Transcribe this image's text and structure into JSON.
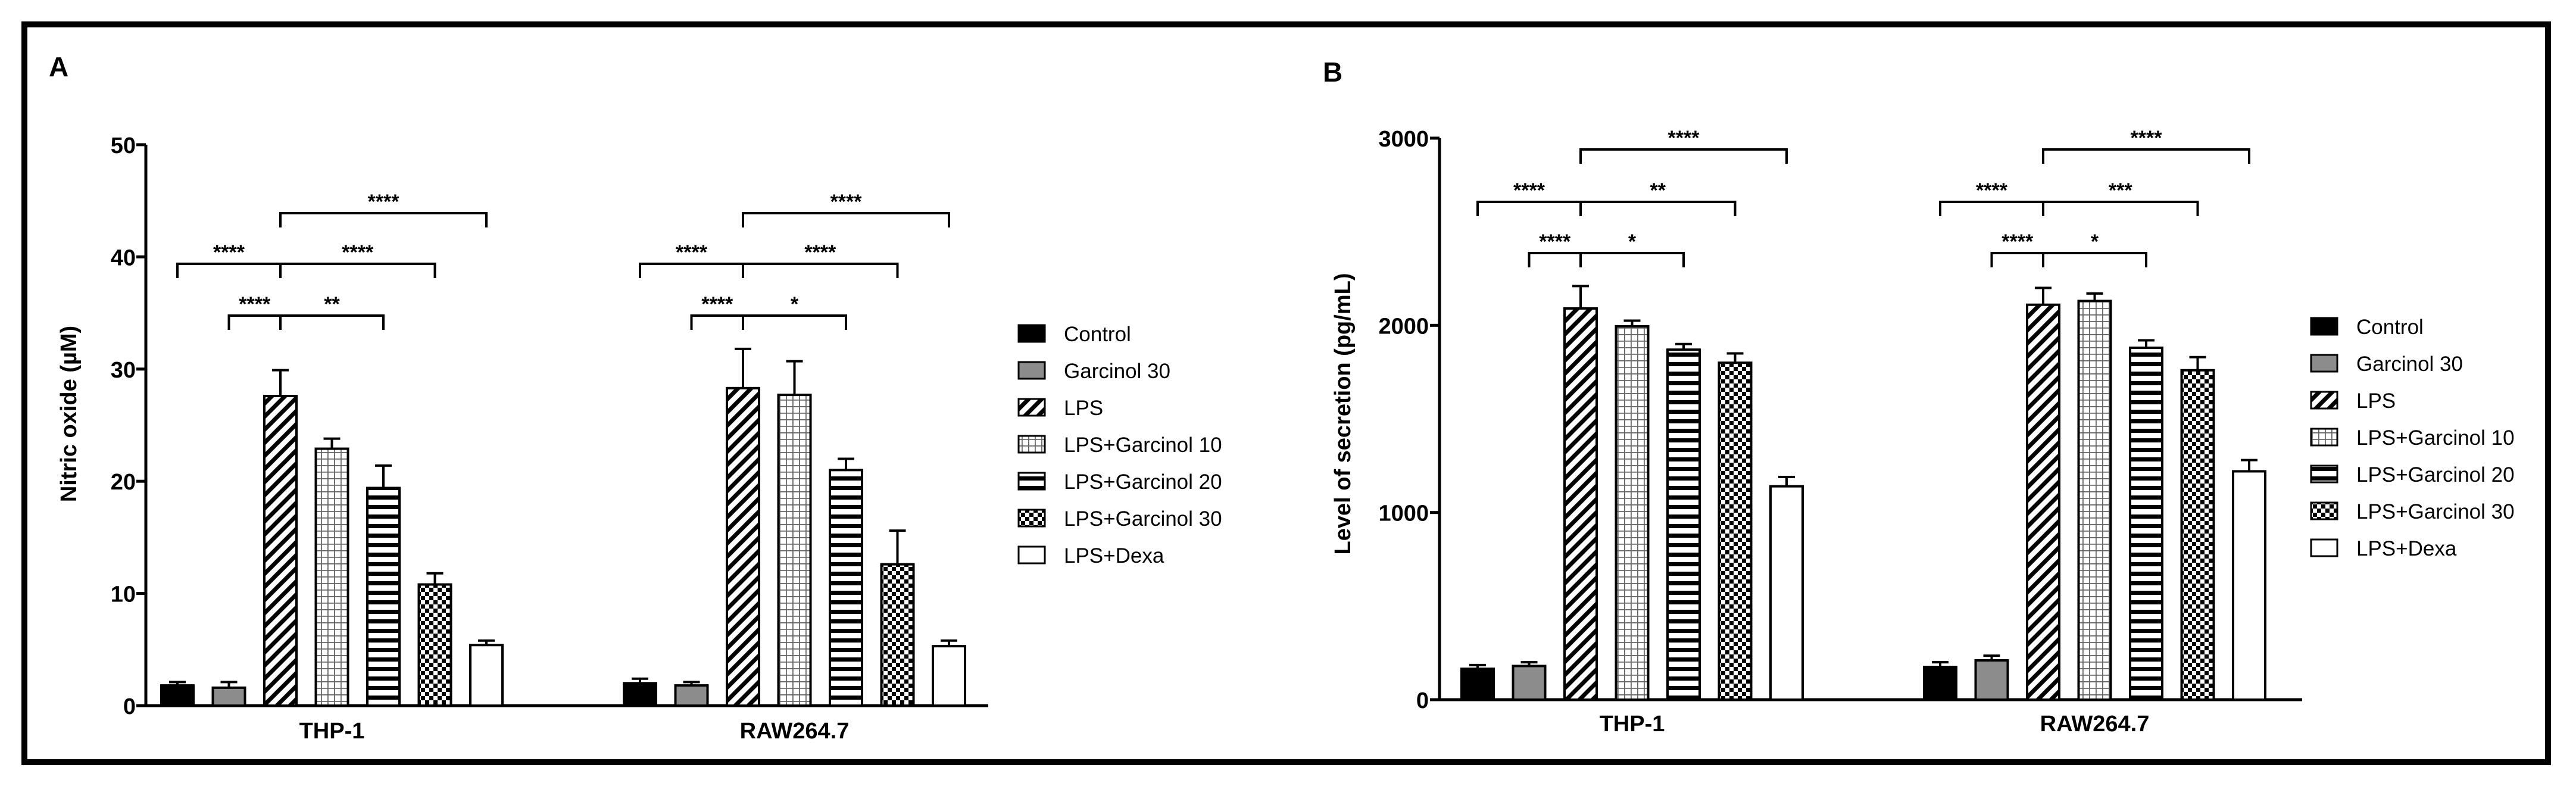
{
  "colors": {
    "control": "#000000",
    "garcinol": "#8c8c8c",
    "text": "#000000"
  },
  "chart_data": [
    {
      "panel_label": "A",
      "type": "bar",
      "ylabel": "Nitric oxide (µM)",
      "ylim": [
        0,
        50
      ],
      "yticks": [
        "0",
        "10",
        "20",
        "30",
        "40",
        "50"
      ],
      "categories": [
        "THP-1",
        "RAW264.7"
      ],
      "legend_position": "right",
      "series": [
        {
          "name": "Control",
          "pattern": "solid-black",
          "values": [
            1.8,
            2.0
          ],
          "errors": [
            0.3,
            0.4
          ]
        },
        {
          "name": "Garcinol 30",
          "pattern": "solid-gray",
          "values": [
            1.6,
            1.8
          ],
          "errors": [
            0.5,
            0.3
          ]
        },
        {
          "name": "LPS",
          "pattern": "diagonal",
          "values": [
            27.6,
            28.3
          ],
          "errors": [
            2.3,
            3.5
          ]
        },
        {
          "name": "LPS+Garcinol 10",
          "pattern": "grid",
          "values": [
            22.9,
            27.7
          ],
          "errors": [
            0.9,
            3.0
          ]
        },
        {
          "name": "LPS+Garcinol 20",
          "pattern": "horizontal",
          "values": [
            19.4,
            21.0
          ],
          "errors": [
            2.0,
            1.0
          ]
        },
        {
          "name": "LPS+Garcinol 30",
          "pattern": "checker",
          "values": [
            10.8,
            12.6
          ],
          "errors": [
            1.0,
            3.0
          ]
        },
        {
          "name": "LPS+Dexa",
          "pattern": "white",
          "values": [
            5.4,
            5.3
          ],
          "errors": [
            0.4,
            0.5
          ]
        }
      ],
      "significance": [
        {
          "from": "Control",
          "to": "LPS",
          "label": "****"
        },
        {
          "from": "Garcinol 30",
          "to": "LPS",
          "label": "****"
        },
        {
          "from": "LPS",
          "to": "LPS+Garcinol 20",
          "label": "**",
          "group": 0
        },
        {
          "from": "LPS",
          "to": "LPS+Garcinol 20",
          "label": "*",
          "group": 1
        },
        {
          "from": "LPS",
          "to": "LPS+Garcinol 30",
          "label": "****"
        },
        {
          "from": "LPS",
          "to": "LPS+Dexa",
          "label": "****"
        }
      ]
    },
    {
      "panel_label": "B",
      "type": "bar",
      "ylabel": "Level of secretion (pg/mL)",
      "ylim": [
        0,
        3000
      ],
      "yticks": [
        "0",
        "1000",
        "2000",
        "3000"
      ],
      "categories": [
        "THP-1",
        "RAW264.7"
      ],
      "legend_position": "right",
      "series": [
        {
          "name": "Control",
          "pattern": "solid-black",
          "values": [
            165,
            175
          ],
          "errors": [
            20,
            25
          ]
        },
        {
          "name": "Garcinol 30",
          "pattern": "solid-gray",
          "values": [
            180,
            210
          ],
          "errors": [
            20,
            25
          ]
        },
        {
          "name": "LPS",
          "pattern": "diagonal",
          "values": [
            2090,
            2110
          ],
          "errors": [
            120,
            90
          ]
        },
        {
          "name": "LPS+Garcinol 10",
          "pattern": "grid",
          "values": [
            1995,
            2130
          ],
          "errors": [
            30,
            40
          ]
        },
        {
          "name": "LPS+Garcinol 20",
          "pattern": "horizontal",
          "values": [
            1870,
            1880
          ],
          "errors": [
            30,
            40
          ]
        },
        {
          "name": "LPS+Garcinol 30",
          "pattern": "checker",
          "values": [
            1800,
            1760
          ],
          "errors": [
            50,
            70
          ]
        },
        {
          "name": "LPS+Dexa",
          "pattern": "white",
          "values": [
            1140,
            1220
          ],
          "errors": [
            50,
            60
          ]
        }
      ],
      "significance": [
        {
          "from": "Garcinol 30",
          "to": "LPS",
          "label": "****"
        },
        {
          "from": "LPS",
          "to": "LPS+Garcinol 20",
          "label": "*"
        },
        {
          "from": "Control",
          "to": "LPS",
          "label": "****"
        },
        {
          "from": "LPS",
          "to": "LPS+Garcinol 30",
          "label": "**",
          "group": 0
        },
        {
          "from": "LPS",
          "to": "LPS+Garcinol 30",
          "label": "***",
          "group": 1
        },
        {
          "from": "LPS",
          "to": "LPS+Dexa",
          "label": "****"
        }
      ]
    }
  ]
}
